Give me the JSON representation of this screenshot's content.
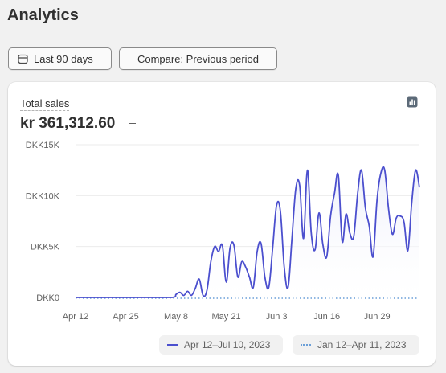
{
  "header": {
    "title": "Analytics"
  },
  "toolbar": {
    "date_range_label": "Last 90 days",
    "date_icon": "calendar-icon",
    "compare_label": "Compare: Previous period"
  },
  "card": {
    "metric_label": "Total sales",
    "metric_value": "kr 361,312.60",
    "chart_icon": "bar-chart-icon"
  },
  "colors": {
    "current_series": "#4b4fce",
    "previous_series": "#6b9fd8",
    "area_fill": "#eef0fb"
  },
  "chart_data": {
    "type": "area",
    "y_ticks": [
      "DKK0",
      "DKK5K",
      "DKK10K",
      "DKK15K"
    ],
    "ylim": [
      0,
      15000
    ],
    "x_tick_labels": [
      "Apr 12",
      "Apr 25",
      "May 8",
      "May 21",
      "Jun 3",
      "Jun 16",
      "Jun 29"
    ],
    "x_tick_positions": [
      0,
      13,
      26,
      39,
      52,
      65,
      78
    ],
    "x_range": [
      0,
      89
    ],
    "grid": true,
    "legend_position": "bottom-right",
    "series": [
      {
        "name": "Apr 12–Jul 10, 2023",
        "style": "solid",
        "x": [
          0,
          9,
          18,
          25,
          26,
          27,
          28,
          29,
          30,
          31,
          32,
          33,
          34,
          35,
          36,
          37,
          38,
          39,
          40,
          41,
          42,
          43,
          44,
          45,
          46,
          47,
          48,
          49,
          50,
          51,
          52,
          53,
          54,
          55,
          56,
          57,
          58,
          59,
          60,
          61,
          62,
          63,
          64,
          65,
          66,
          67,
          68,
          69,
          70,
          71,
          72,
          73,
          74,
          75,
          76,
          77,
          78,
          79,
          80,
          81,
          82,
          83,
          84,
          85,
          86,
          87,
          88,
          89
        ],
        "values": [
          0,
          0,
          0,
          0,
          300,
          500,
          200,
          600,
          200,
          900,
          1800,
          200,
          700,
          3500,
          5000,
          4500,
          5100,
          1500,
          4900,
          5100,
          2000,
          3500,
          3000,
          2000,
          1000,
          4500,
          5300,
          2000,
          1000,
          4800,
          9000,
          8500,
          3000,
          1000,
          5800,
          10700,
          11000,
          5800,
          12500,
          6300,
          4700,
          8300,
          5200,
          4000,
          8000,
          10200,
          12000,
          5500,
          8200,
          6300,
          6000,
          10200,
          12500,
          8800,
          7000,
          4000,
          9500,
          12200,
          12500,
          8700,
          6200,
          7800,
          8000,
          7400,
          4600,
          9300,
          12500,
          10800
        ]
      },
      {
        "name": "Jan 12–Apr 11, 2023",
        "style": "dotted",
        "x": [
          0,
          89
        ],
        "values": [
          0,
          0
        ]
      }
    ]
  }
}
